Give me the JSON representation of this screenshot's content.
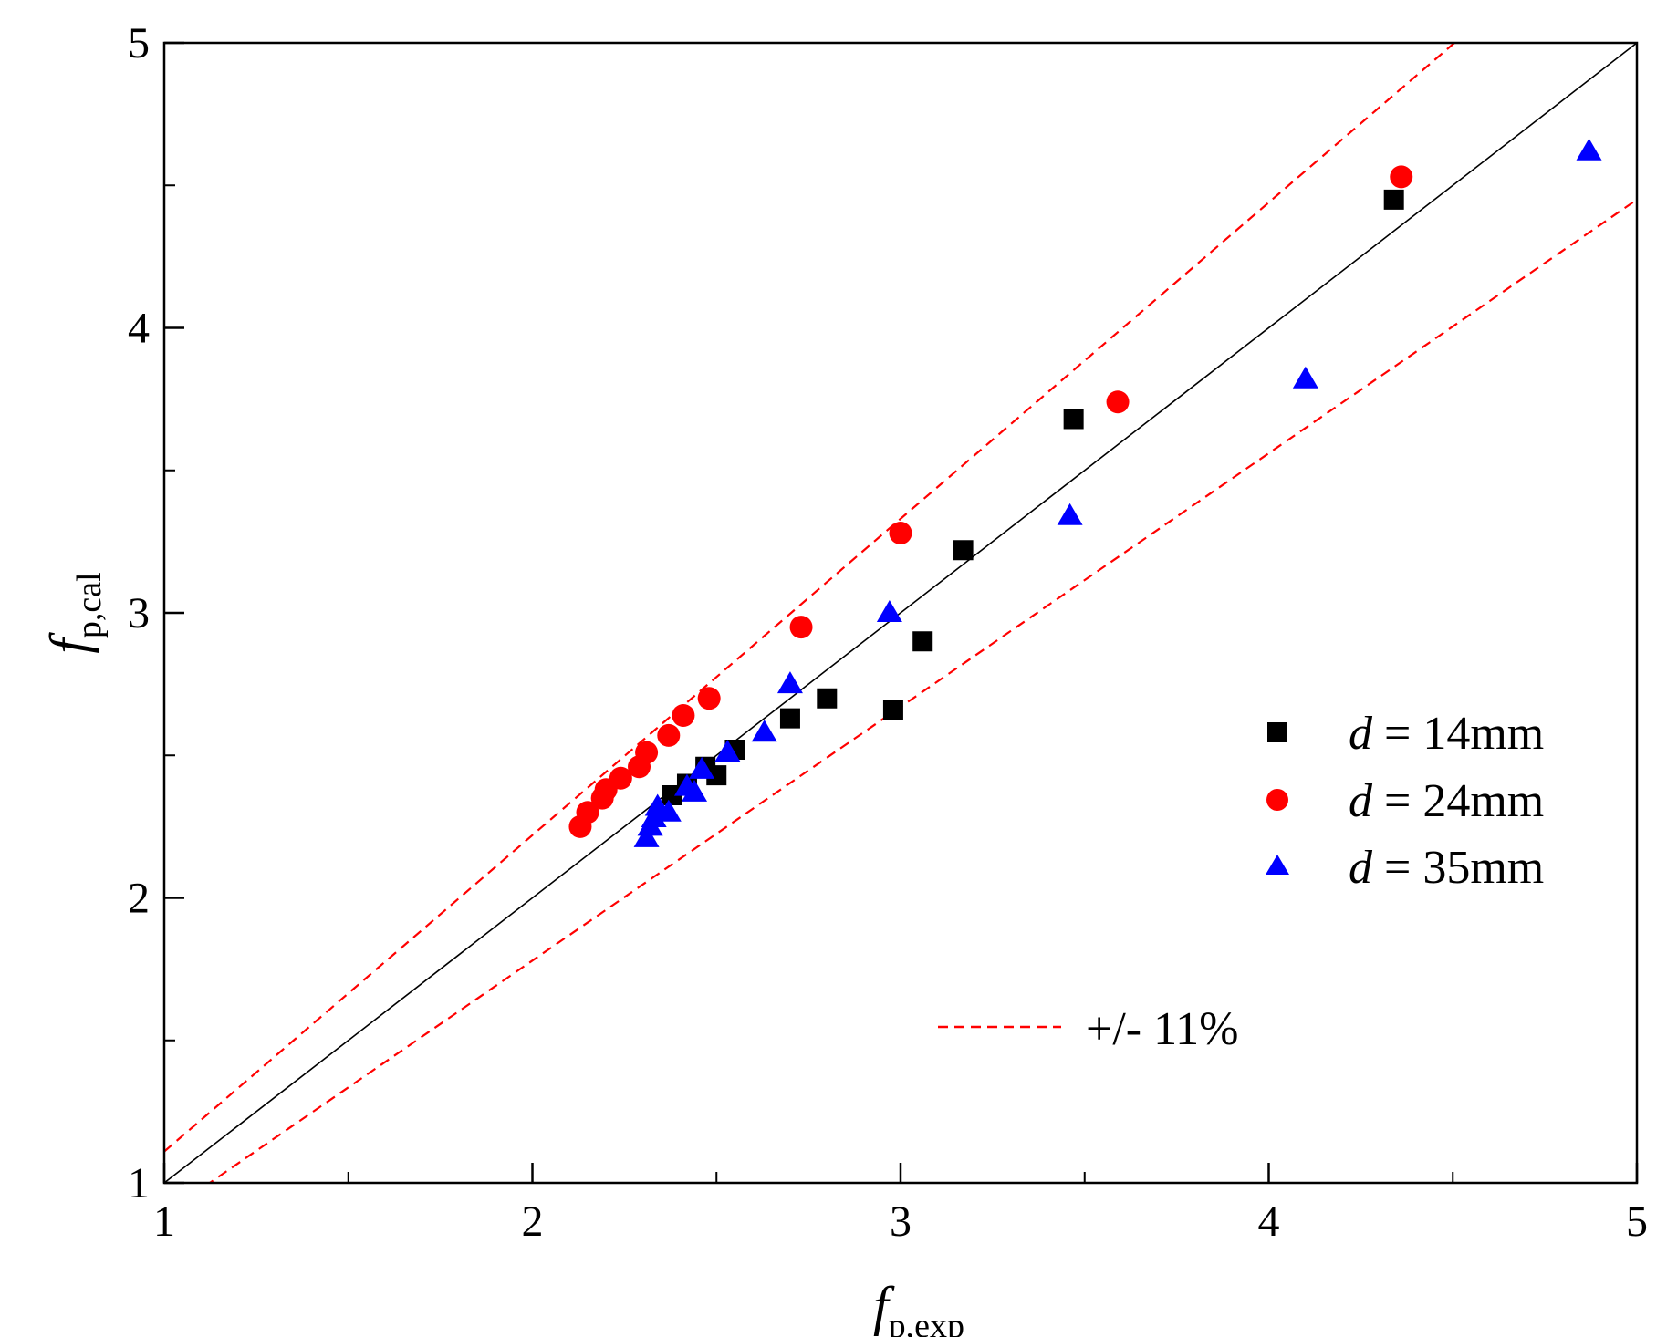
{
  "chart_data": {
    "type": "scatter",
    "title": "",
    "xlabel": {
      "main": "f",
      "sub": "p,exp"
    },
    "ylabel": {
      "main": "f",
      "sub": "p,cal"
    },
    "xlim": [
      1,
      5
    ],
    "ylim": [
      1,
      5
    ],
    "xticks": [
      1,
      2,
      3,
      4,
      5
    ],
    "yticks": [
      1,
      2,
      3,
      4,
      5
    ],
    "grid": false,
    "legend_position": "right",
    "series": [
      {
        "name": "14mm",
        "symbol": "d",
        "marker": "square",
        "color": "#000000",
        "points": [
          [
            2.38,
            2.36
          ],
          [
            2.42,
            2.4
          ],
          [
            2.47,
            2.46
          ],
          [
            2.5,
            2.43
          ],
          [
            2.55,
            2.52
          ],
          [
            2.7,
            2.63
          ],
          [
            2.8,
            2.7
          ],
          [
            2.98,
            2.66
          ],
          [
            3.06,
            2.9
          ],
          [
            3.17,
            3.22
          ],
          [
            3.47,
            3.68
          ],
          [
            4.34,
            4.45
          ]
        ]
      },
      {
        "name": "24mm",
        "symbol": "d",
        "marker": "circle",
        "color": "#ff0000",
        "points": [
          [
            2.13,
            2.25
          ],
          [
            2.15,
            2.3
          ],
          [
            2.19,
            2.35
          ],
          [
            2.2,
            2.38
          ],
          [
            2.24,
            2.42
          ],
          [
            2.29,
            2.46
          ],
          [
            2.31,
            2.51
          ],
          [
            2.37,
            2.57
          ],
          [
            2.41,
            2.64
          ],
          [
            2.48,
            2.7
          ],
          [
            2.73,
            2.95
          ],
          [
            3.0,
            3.28
          ],
          [
            3.59,
            3.74
          ],
          [
            4.36,
            4.53
          ]
        ]
      },
      {
        "name": "35mm",
        "symbol": "d",
        "marker": "triangle",
        "color": "#0000ff",
        "points": [
          [
            2.31,
            2.21
          ],
          [
            2.32,
            2.25
          ],
          [
            2.33,
            2.28
          ],
          [
            2.34,
            2.32
          ],
          [
            2.37,
            2.3
          ],
          [
            2.42,
            2.39
          ],
          [
            2.44,
            2.37
          ],
          [
            2.46,
            2.45
          ],
          [
            2.53,
            2.51
          ],
          [
            2.63,
            2.58
          ],
          [
            2.7,
            2.75
          ],
          [
            2.97,
            3.0
          ],
          [
            3.46,
            3.34
          ],
          [
            4.1,
            3.82
          ],
          [
            4.87,
            4.62
          ]
        ]
      }
    ],
    "reference_lines": {
      "identity": {
        "slope": 1.0,
        "color": "#000000"
      },
      "bounds": {
        "label": "+/- 11%",
        "slopes": [
          1.11,
          0.89
        ],
        "color": "#ff0000"
      }
    }
  }
}
